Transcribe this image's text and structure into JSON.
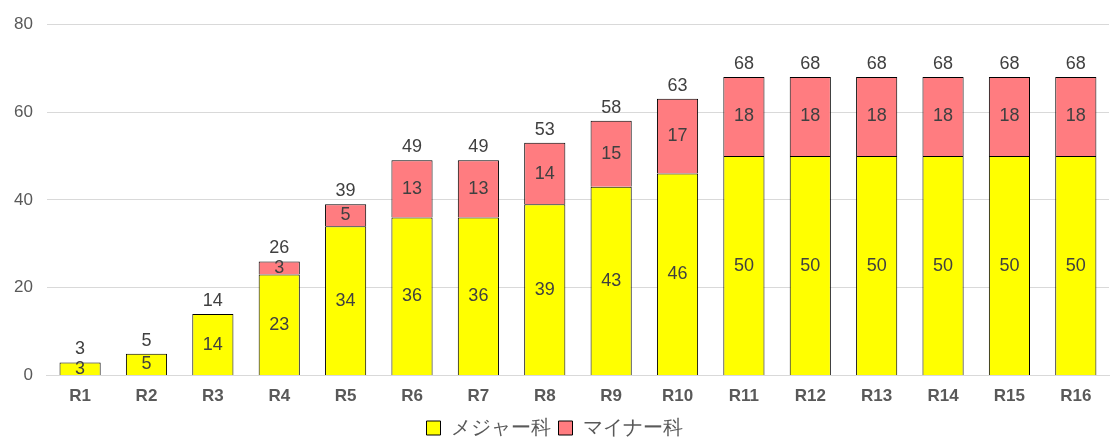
{
  "chart_data": {
    "type": "bar",
    "stacked": true,
    "categories": [
      "R1",
      "R2",
      "R3",
      "R4",
      "R5",
      "R6",
      "R7",
      "R8",
      "R9",
      "R10",
      "R11",
      "R12",
      "R13",
      "R14",
      "R15",
      "R16"
    ],
    "series": [
      {
        "name": "メジャー科",
        "color": "#ffff00",
        "values": [
          3,
          5,
          14,
          23,
          34,
          36,
          36,
          39,
          43,
          46,
          50,
          50,
          50,
          50,
          50,
          50
        ]
      },
      {
        "name": "マイナー科",
        "color": "#ff7c80",
        "values": [
          null,
          null,
          null,
          3,
          5,
          13,
          13,
          14,
          15,
          17,
          18,
          18,
          18,
          18,
          18,
          18
        ]
      }
    ],
    "totals": [
      "3",
      "5",
      "14",
      "26",
      "39",
      "49",
      "49",
      "53",
      "58",
      "63",
      "68",
      "68",
      "68",
      "68",
      "68",
      "68"
    ],
    "ylim": [
      0,
      80
    ],
    "yticks": [
      0,
      20,
      40,
      60,
      80
    ],
    "grid": "y",
    "legend": "bottom",
    "data_labels": true
  }
}
